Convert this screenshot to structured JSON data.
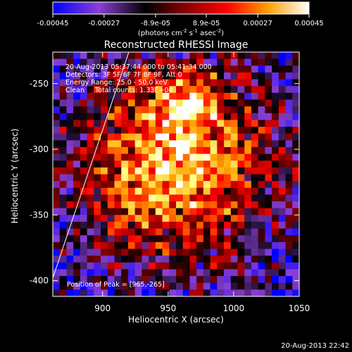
{
  "colorbar": {
    "ticks": [
      "-0.00045",
      "-0.00027",
      "-8.9e-05",
      "8.9e-05",
      "0.00027",
      "0.00045"
    ],
    "tick_values": [
      -0.00045,
      -0.00027,
      -8.9e-05,
      8.9e-05,
      0.00027,
      0.00045
    ],
    "range": [
      -0.00045,
      0.00045
    ],
    "units_main": "(photons cm",
    "units_exp1": "-2",
    "units_mid": " s",
    "units_exp2": "-1",
    "units_end": " asec",
    "units_exp3": "-2",
    "units_close": ")"
  },
  "chart_data": {
    "type": "heatmap",
    "title": "Reconstructed RHESSI Image",
    "xlabel": "Heliocentric X (arcsec)",
    "ylabel": "Heliocentric Y (arcsec)",
    "xlim": [
      862,
      1050
    ],
    "ylim": [
      -412,
      -226
    ],
    "xticks": [
      900,
      950,
      1000,
      1050
    ],
    "yticks": [
      -250,
      -300,
      -350,
      -400
    ],
    "limb_line": [
      [
        862,
        -398
      ],
      [
        920,
        -226
      ]
    ],
    "peak": [
      965,
      -265
    ],
    "grid_size": [
      36,
      36
    ],
    "colormap": [
      "#0000ff",
      "#8a3fd6",
      "#000000",
      "#7a0000",
      "#ff0000",
      "#ffa000",
      "#ffff80",
      "#ffffff"
    ],
    "info_lines": [
      "20-Aug-2013 05:37:44.000 to 05:41:34.000",
      "Detectors: 3F 5F 6F 7F 8F 9F, Att 0",
      "Energy Range: 25.0 - 50.0 keV",
      "Clean     Total counts: 1.33E+04"
    ],
    "peak_label": "Position of Peak = [965,-265]"
  },
  "footer": {
    "timestamp": "20-Aug-2013 22:42"
  }
}
